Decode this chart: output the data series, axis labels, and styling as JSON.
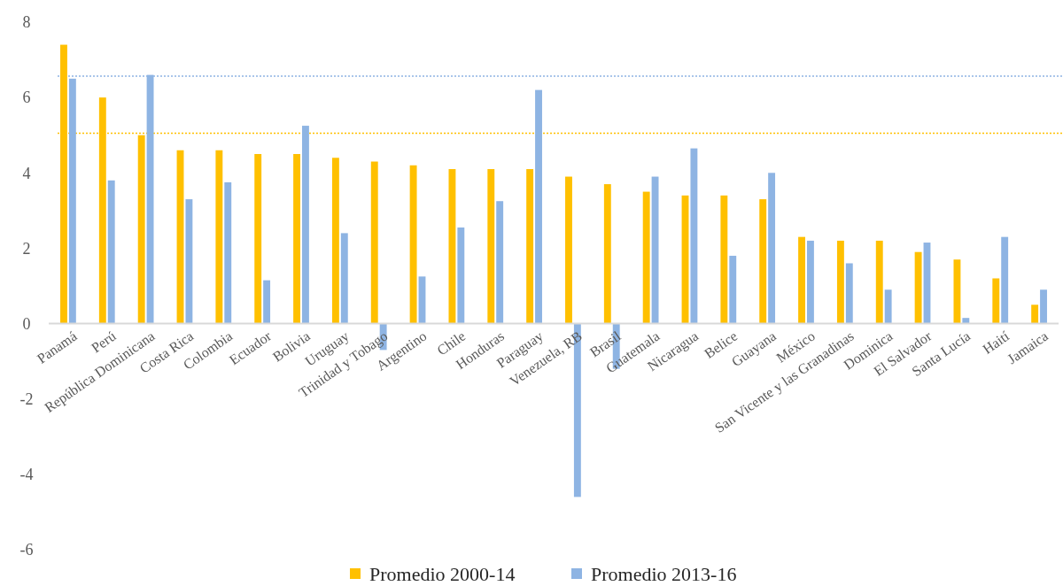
{
  "chart_data": {
    "type": "bar",
    "categories": [
      "Panamá",
      "Perú",
      "República Dominicana",
      "Costa Rica",
      "Colombia",
      "Ecuador",
      "Bolivia",
      "Uruguay",
      "Trinidad y Tobago",
      "Argentino",
      "Chile",
      "Honduras",
      "Paraguay",
      "Venezuela, RB",
      "Brasil",
      "Guatemala",
      "Nicaragua",
      "Belice",
      "Guayana",
      "México",
      "San Vicente y las Granadinas",
      "Dominica",
      "El Salvador",
      "Santa Lucía",
      "Haití",
      "Jamaica"
    ],
    "series": [
      {
        "name": "Promedio 2000-14",
        "color": "#ffc000",
        "values": [
          7.4,
          6.0,
          5.0,
          4.6,
          4.6,
          4.5,
          4.5,
          4.4,
          4.3,
          4.2,
          4.1,
          4.1,
          4.1,
          3.9,
          3.7,
          3.5,
          3.4,
          3.4,
          3.3,
          2.3,
          2.2,
          2.2,
          1.9,
          1.7,
          1.2,
          0.5
        ]
      },
      {
        "name": "Promedio 2013-16",
        "color": "#8eb4e3",
        "values": [
          6.5,
          3.8,
          6.6,
          3.3,
          3.75,
          1.15,
          5.25,
          2.4,
          -0.7,
          1.25,
          2.55,
          3.25,
          6.2,
          -4.6,
          -1.2,
          3.9,
          4.65,
          1.8,
          4.0,
          2.2,
          1.6,
          0.9,
          2.15,
          0.15,
          2.3,
          0.9
        ]
      }
    ],
    "ylim": [
      -6,
      8
    ],
    "yticks": [
      -6,
      -4,
      -2,
      0,
      2,
      4,
      6,
      8
    ],
    "ref_lines": [
      {
        "axis": "y",
        "value": 6.57,
        "color": "#8eb4e3",
        "line_style": "dotted"
      },
      {
        "axis": "y",
        "value": 5.05,
        "color": "#ffc000",
        "line_style": "dotted"
      }
    ],
    "grid": false,
    "legend": "bottom"
  }
}
